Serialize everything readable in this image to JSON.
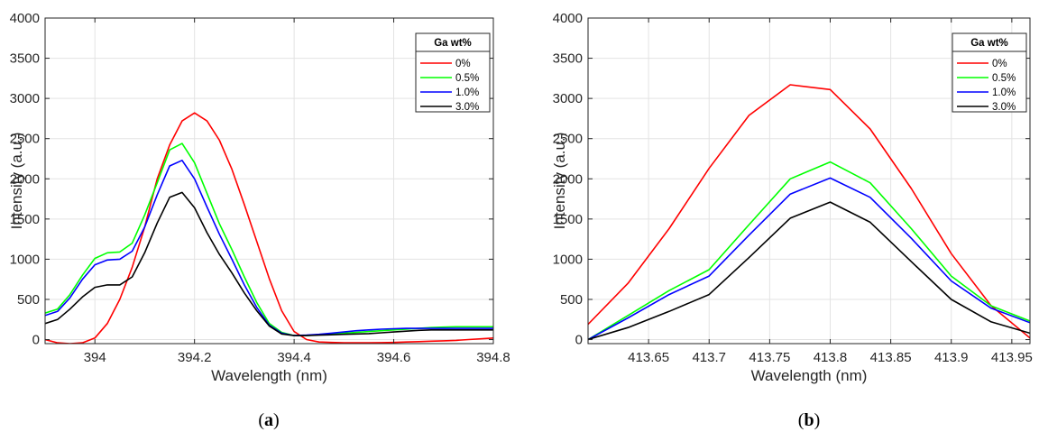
{
  "chart_data": [
    {
      "type": "line",
      "caption": "(a)",
      "xlabel": "Wavelength (nm)",
      "ylabel": "Intensity (a.u.)",
      "xlim": [
        393.9,
        394.8
      ],
      "ylim": [
        -50,
        4000
      ],
      "xticks": [
        394,
        394.2,
        394.4,
        394.6,
        394.8
      ],
      "xtick_labels": [
        "394",
        "394.2",
        "394.4",
        "394.6",
        "394.8"
      ],
      "yticks": [
        0,
        500,
        1000,
        1500,
        2000,
        2500,
        3000,
        3500,
        4000
      ],
      "ytick_labels": [
        "0",
        "500",
        "1000",
        "1500",
        "2000",
        "2500",
        "3000",
        "3500",
        "4000"
      ],
      "grid": true,
      "legend": {
        "title": "Ga wt%",
        "position": "top-right"
      },
      "x": [
        393.9,
        393.925,
        393.95,
        393.975,
        394.0,
        394.025,
        394.05,
        394.075,
        394.1,
        394.125,
        394.15,
        394.175,
        394.2,
        394.225,
        394.25,
        394.275,
        394.3,
        394.325,
        394.35,
        394.375,
        394.4,
        394.425,
        394.45,
        394.475,
        394.5,
        394.525,
        394.55,
        394.575,
        394.6,
        394.625,
        394.65,
        394.675,
        394.7,
        394.725,
        394.75,
        394.775,
        394.8
      ],
      "series": [
        {
          "name": "0%",
          "color": "#ff0000",
          "values": [
            0,
            -40,
            -50,
            -40,
            20,
            200,
            500,
            900,
            1400,
            2000,
            2420,
            2720,
            2820,
            2720,
            2480,
            2120,
            1680,
            1220,
            760,
            360,
            100,
            0,
            -30,
            -35,
            -40,
            -40,
            -40,
            -38,
            -35,
            -30,
            -25,
            -20,
            -15,
            -10,
            0,
            10,
            20
          ]
        },
        {
          "name": "0.5%",
          "color": "#00ff00",
          "values": [
            330,
            380,
            560,
            800,
            1010,
            1080,
            1090,
            1200,
            1550,
            1950,
            2360,
            2440,
            2200,
            1820,
            1440,
            1120,
            780,
            460,
            200,
            90,
            50,
            50,
            60,
            70,
            80,
            90,
            100,
            110,
            120,
            130,
            140,
            150,
            155,
            160,
            160,
            160,
            160
          ]
        },
        {
          "name": "1.0%",
          "color": "#0000ff",
          "values": [
            300,
            350,
            520,
            750,
            930,
            990,
            1000,
            1100,
            1400,
            1800,
            2160,
            2230,
            2000,
            1650,
            1310,
            1000,
            680,
            400,
            180,
            80,
            50,
            55,
            65,
            80,
            95,
            110,
            120,
            130,
            135,
            140,
            140,
            140,
            140,
            140,
            140,
            140,
            140
          ]
        },
        {
          "name": "3.0%",
          "color": "#000000",
          "values": [
            200,
            250,
            380,
            530,
            650,
            680,
            680,
            780,
            1080,
            1450,
            1770,
            1830,
            1640,
            1330,
            1060,
            830,
            580,
            360,
            170,
            70,
            50,
            50,
            55,
            60,
            65,
            70,
            75,
            85,
            95,
            105,
            115,
            120,
            120,
            120,
            120,
            120,
            120
          ]
        }
      ]
    },
    {
      "type": "line",
      "caption": "(b)",
      "xlabel": "Wavelength (nm)",
      "ylabel": "Intensity (a.u.)",
      "xlim": [
        413.6,
        413.965
      ],
      "ylim": [
        -50,
        4000
      ],
      "xticks": [
        413.65,
        413.7,
        413.75,
        413.8,
        413.85,
        413.9,
        413.95
      ],
      "xtick_labels": [
        "413.65",
        "413.7",
        "413.75",
        "413.8",
        "413.85",
        "413.9",
        "413.95"
      ],
      "yticks": [
        0,
        500,
        1000,
        1500,
        2000,
        2500,
        3000,
        3500,
        4000
      ],
      "ytick_labels": [
        "0",
        "500",
        "1000",
        "1500",
        "2000",
        "2500",
        "3000",
        "3500",
        "4000"
      ],
      "grid": true,
      "legend": {
        "title": "Ga wt%",
        "position": "top-right"
      },
      "x": [
        413.6,
        413.633,
        413.667,
        413.7,
        413.733,
        413.767,
        413.8,
        413.833,
        413.867,
        413.9,
        413.933,
        413.965
      ],
      "series": [
        {
          "name": "0%",
          "color": "#ff0000",
          "values": [
            190,
            700,
            1380,
            2130,
            2790,
            3170,
            3110,
            2620,
            1880,
            1070,
            420,
            20
          ]
        },
        {
          "name": "0.5%",
          "color": "#00ff00",
          "values": [
            0,
            300,
            610,
            870,
            1430,
            2000,
            2210,
            1950,
            1380,
            790,
            420,
            230
          ]
        },
        {
          "name": "1.0%",
          "color": "#0000ff",
          "values": [
            0,
            270,
            560,
            790,
            1300,
            1810,
            2010,
            1770,
            1260,
            730,
            390,
            210
          ]
        },
        {
          "name": "3.0%",
          "color": "#000000",
          "values": [
            0,
            150,
            350,
            560,
            1020,
            1510,
            1710,
            1460,
            970,
            500,
            220,
            80
          ]
        }
      ]
    }
  ]
}
